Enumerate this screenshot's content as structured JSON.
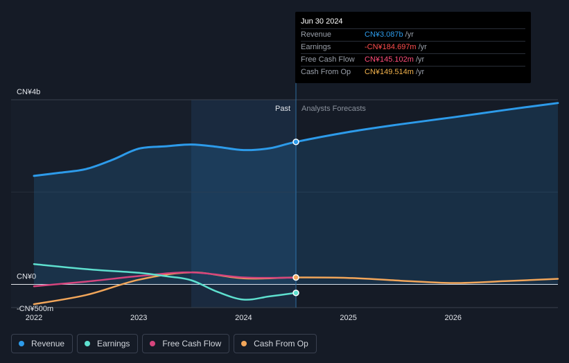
{
  "tooltip": {
    "date": "Jun 30 2024",
    "rows": [
      {
        "label": "Revenue",
        "value": "CN¥3.087b",
        "unit": "/yr",
        "color": "#2d9bea"
      },
      {
        "label": "Earnings",
        "value": "-CN¥184.697m",
        "unit": "/yr",
        "color": "#ff4d4d"
      },
      {
        "label": "Free Cash Flow",
        "value": "CN¥145.102m",
        "unit": "/yr",
        "color": "#ff4d7a"
      },
      {
        "label": "Cash From Op",
        "value": "CN¥149.514m",
        "unit": "/yr",
        "color": "#f2b24c"
      }
    ]
  },
  "labels": {
    "past": "Past",
    "forecast": "Analysts Forecasts"
  },
  "legend": [
    {
      "label": "Revenue",
      "color": "#2d9bea"
    },
    {
      "label": "Earnings",
      "color": "#5ee0cf"
    },
    {
      "label": "Free Cash Flow",
      "color": "#d6457d"
    },
    {
      "label": "Cash From Op",
      "color": "#f2a65a"
    }
  ],
  "chart_data": {
    "type": "line",
    "y_unit": "CN¥ millions",
    "ylim": [
      -500,
      4000
    ],
    "y_ticks": [
      {
        "value": 4000,
        "label": "CN¥4b"
      },
      {
        "value": 0,
        "label": "CN¥0"
      },
      {
        "value": -500,
        "label": "-CN¥500m"
      }
    ],
    "x_range": [
      2021.8,
      2027.0
    ],
    "x_ticks": [
      {
        "value": 2022,
        "label": "2022"
      },
      {
        "value": 2023,
        "label": "2023"
      },
      {
        "value": 2024,
        "label": "2024"
      },
      {
        "value": 2025,
        "label": "2025"
      },
      {
        "value": 2026,
        "label": "2026"
      }
    ],
    "past_start": 2023.5,
    "divider": 2024.5,
    "series": [
      {
        "name": "Revenue",
        "color": "#2d9bea",
        "area": true,
        "points": [
          [
            2022.0,
            2350
          ],
          [
            2022.25,
            2420
          ],
          [
            2022.5,
            2500
          ],
          [
            2022.75,
            2700
          ],
          [
            2023.0,
            2940
          ],
          [
            2023.25,
            2990
          ],
          [
            2023.5,
            3030
          ],
          [
            2023.75,
            2980
          ],
          [
            2024.0,
            2910
          ],
          [
            2024.25,
            2950
          ],
          [
            2024.5,
            3087
          ],
          [
            2025.0,
            3300
          ],
          [
            2025.5,
            3470
          ],
          [
            2026.0,
            3620
          ],
          [
            2026.5,
            3780
          ],
          [
            2027.0,
            3930
          ]
        ]
      },
      {
        "name": "Earnings",
        "color": "#5ee0cf",
        "area": false,
        "points": [
          [
            2022.0,
            440
          ],
          [
            2022.5,
            330
          ],
          [
            2023.0,
            250
          ],
          [
            2023.25,
            180
          ],
          [
            2023.5,
            90
          ],
          [
            2023.75,
            -160
          ],
          [
            2024.0,
            -330
          ],
          [
            2024.25,
            -260
          ],
          [
            2024.5,
            -185
          ]
        ]
      },
      {
        "name": "Free Cash Flow",
        "color": "#d6457d",
        "area": false,
        "points": [
          [
            2022.0,
            -40
          ],
          [
            2022.5,
            60
          ],
          [
            2023.0,
            180
          ],
          [
            2023.5,
            260
          ],
          [
            2024.0,
            150
          ],
          [
            2024.5,
            145
          ]
        ]
      },
      {
        "name": "Cash From Op",
        "color": "#f2a65a",
        "area": false,
        "points": [
          [
            2022.0,
            -430
          ],
          [
            2022.5,
            -230
          ],
          [
            2023.0,
            100
          ],
          [
            2023.5,
            260
          ],
          [
            2024.0,
            130
          ],
          [
            2024.5,
            150
          ],
          [
            2025.0,
            140
          ],
          [
            2025.5,
            80
          ],
          [
            2026.0,
            30
          ],
          [
            2026.5,
            70
          ],
          [
            2027.0,
            120
          ]
        ]
      }
    ]
  }
}
